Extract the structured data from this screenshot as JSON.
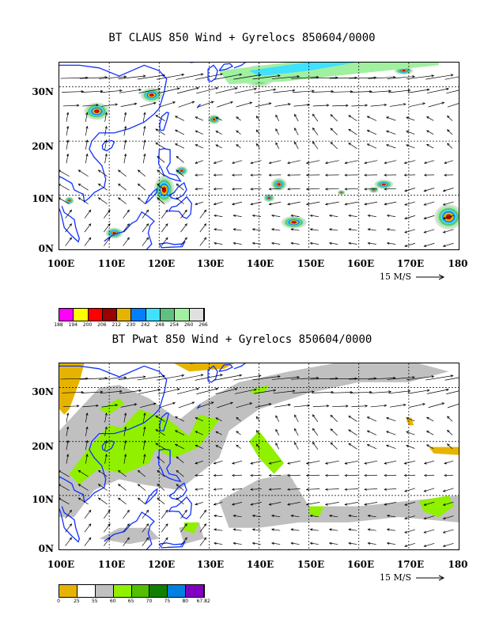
{
  "top": {
    "title": "BT CLAUS 850 Wind + Gyrelocs 850604/0000",
    "ylabels": [
      "30N",
      "20N",
      "10N",
      "0N"
    ],
    "xlabels": [
      "100E",
      "110E",
      "120E",
      "130E",
      "140E",
      "150E",
      "160E",
      "170E",
      "180"
    ],
    "ref_vector": "15 M/S",
    "colorbar": {
      "colors": [
        "#ff00ff",
        "#ffff00",
        "#ff0000",
        "#990000",
        "#e6b400",
        "#0080ff",
        "#40e0ff",
        "#60c080",
        "#a0f0a0",
        "#e0e0e0"
      ],
      "labels": [
        "188",
        "194",
        "200",
        "206",
        "212",
        "230",
        "242",
        "248",
        "254",
        "260",
        "266"
      ]
    }
  },
  "bottom": {
    "title": "BT Pwat 850 Wind + Gyrelocs 850604/0000",
    "ylabels": [
      "30N",
      "20N",
      "10N",
      "0N"
    ],
    "xlabels": [
      "100E",
      "110E",
      "120E",
      "130E",
      "140E",
      "150E",
      "160E",
      "170E",
      "180"
    ],
    "ref_vector": "15 M/S",
    "colorbar": {
      "colors": [
        "#e6b400",
        "#ffffff",
        "#c0c0c0",
        "#90f000",
        "#50c000",
        "#108000",
        "#0080e0",
        "#8000c0"
      ],
      "labels": [
        "0",
        "25",
        "55",
        "60",
        "65",
        "70",
        "75",
        "80",
        "67.82"
      ]
    }
  }
}
